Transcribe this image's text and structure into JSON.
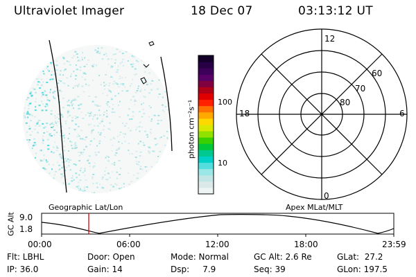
{
  "header": {
    "title": "Ultraviolet Imager",
    "date": "18 Dec 07",
    "time": "03:13:12 UT"
  },
  "colorbar": {
    "unit_label": "photon cm⁻²s⁻¹",
    "ticks": [
      "100",
      "10"
    ],
    "colors": [
      "#eef3f3",
      "#dbe9e9",
      "#c2e6e6",
      "#9be6e6",
      "#52dede",
      "#00d0c8",
      "#00c890",
      "#00c838",
      "#38d000",
      "#90e000",
      "#d8e800",
      "#ffd800",
      "#ffa800",
      "#ff7000",
      "#ff2000",
      "#e00000",
      "#b00018",
      "#800040",
      "#580068",
      "#3c0058",
      "#280044",
      "#140028"
    ]
  },
  "polar_plot": {
    "mlt_labels": {
      "top": "12",
      "left": "18",
      "right": "6",
      "bottom": "0"
    },
    "lat_labels": [
      "60",
      "70",
      "80"
    ]
  },
  "panel_labels": {
    "left": "Geographic Lat/Lon",
    "right": "Apex MLat/MLT"
  },
  "altitude_plot": {
    "axis_label": "GC Alt",
    "ytick_top": "9.0",
    "ytick_bottom": "1.8",
    "xticks": [
      "00:00",
      "06:00",
      "12:00",
      "18:00",
      "23:59"
    ]
  },
  "info": {
    "row1": {
      "flt": "Flt: LBHL",
      "door": "Door: Open",
      "mode": "Mode: Normal",
      "gcalt": "GC Alt: 2.6 Re",
      "glat": "GLat:  27.2"
    },
    "row2": {
      "ip": "IP: 36.0",
      "gain": "Gain: 14",
      "dsp": "Dsp:     7.9",
      "seq": "Seq: 39",
      "glon": "GLon: 197.5"
    }
  },
  "accent_colors": {
    "time_marker": "#dd0000",
    "speckle": [
      "#c4ecec",
      "#9fe2e2",
      "#dfeaea",
      "#5ed8dc"
    ]
  }
}
